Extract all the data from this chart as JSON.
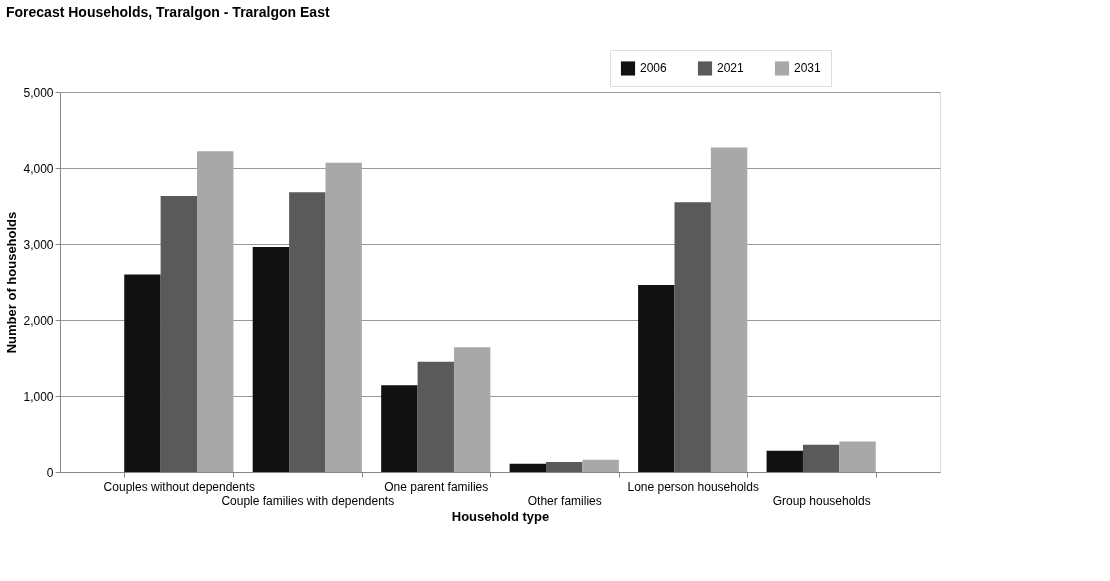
{
  "chart_data": {
    "type": "bar",
    "title": "Forecast Households, Traralgon - Traralgon East",
    "xlabel": "Household type",
    "ylabel": "Number of households",
    "categories": [
      "Couples without dependents",
      "Couple families with dependents",
      "One parent families",
      "Other families",
      "Lone person households",
      "Group households"
    ],
    "series": [
      {
        "name": "2006",
        "color": "#111111",
        "values": [
          2600,
          2960,
          1140,
          110,
          2460,
          280
        ]
      },
      {
        "name": "2021",
        "color": "#5a5a5a",
        "values": [
          3630,
          3680,
          1450,
          130,
          3550,
          360
        ]
      },
      {
        "name": "2031",
        "color": "#a8a8a8",
        "values": [
          4220,
          4070,
          1640,
          160,
          4270,
          400
        ]
      }
    ],
    "ylim": [
      0,
      5000
    ],
    "yticks": [
      0,
      {
        "value": 1000,
        "label": "1,000"
      },
      {
        "value": 2000,
        "label": "2,000"
      },
      {
        "value": 3000,
        "label": "3,000"
      },
      {
        "value": 4000,
        "label": "4,000"
      },
      {
        "value": 5000,
        "label": "5,000"
      }
    ],
    "grid": "y",
    "legend": "top right"
  }
}
